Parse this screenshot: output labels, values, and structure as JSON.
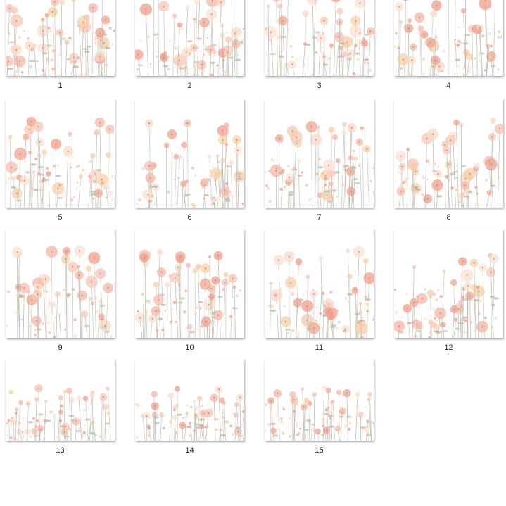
{
  "items": [
    {
      "label": "1"
    },
    {
      "label": "2"
    },
    {
      "label": "3"
    },
    {
      "label": "4"
    },
    {
      "label": "5"
    },
    {
      "label": "6"
    },
    {
      "label": "7"
    },
    {
      "label": "8"
    },
    {
      "label": "9"
    },
    {
      "label": "10"
    },
    {
      "label": "11"
    },
    {
      "label": "12"
    },
    {
      "label": "13"
    },
    {
      "label": "14"
    },
    {
      "label": "15"
    }
  ]
}
